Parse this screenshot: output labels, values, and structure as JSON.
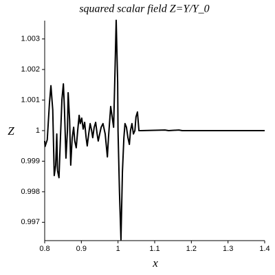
{
  "chart_data": {
    "type": "line",
    "title": "squared scalar field Z=Y/Y_0",
    "x_label": "x",
    "y_label": "Z",
    "x": [
      0.8,
      0.801,
      0.807,
      0.813,
      0.817,
      0.822,
      0.826,
      0.83,
      0.833,
      0.835,
      0.839,
      0.843,
      0.847,
      0.851,
      0.854,
      0.858,
      0.862,
      0.864,
      0.868,
      0.871,
      0.875,
      0.879,
      0.882,
      0.886,
      0.89,
      0.894,
      0.897,
      0.901,
      0.905,
      0.909,
      0.913,
      0.916,
      0.92,
      0.924,
      0.928,
      0.931,
      0.935,
      0.939,
      0.943,
      0.946,
      0.95,
      0.954,
      0.959,
      0.965,
      0.971,
      0.974,
      0.98,
      0.984,
      0.988,
      0.991,
      0.995,
      0.999,
      1.0,
      1.004,
      1.008,
      1.012,
      1.016,
      1.019,
      1.023,
      1.027,
      1.031,
      1.034,
      1.038,
      1.042,
      1.046,
      1.049,
      1.053,
      1.057,
      1.064,
      1.128,
      1.138,
      1.166,
      1.175,
      1.4
    ],
    "series": [
      {
        "name": "Z",
        "color": "#000000",
        "values": [
          0.99966,
          0.99948,
          0.9997,
          1.0009,
          1.00147,
          1.00068,
          0.99853,
          0.99887,
          0.99989,
          0.99869,
          0.99846,
          0.99977,
          1.00102,
          1.00153,
          1.00068,
          0.9991,
          1.0,
          1.00124,
          1.00034,
          0.99887,
          0.99977,
          1.00011,
          0.99966,
          0.99944,
          1.0,
          1.0005,
          1.00023,
          1.00041,
          1.00005,
          1.00027,
          0.99977,
          0.9995,
          0.99989,
          1.00023,
          1.0,
          0.99977,
          1.00011,
          1.00027,
          0.99989,
          0.99966,
          0.99989,
          1.00011,
          1.00023,
          0.99989,
          0.99914,
          0.99977,
          1.00079,
          1.00045,
          1.00011,
          1.00158,
          1.00361,
          1.00158,
          1.0,
          0.99797,
          0.99643,
          0.99865,
          0.99977,
          1.00023,
          1.00011,
          0.99977,
          0.99955,
          1.0,
          1.00023,
          0.99989,
          1.0,
          1.00045,
          1.00061,
          1.0,
          1.0,
          1.00002,
          1.0,
          1.00002,
          1.0,
          1.0
        ]
      }
    ],
    "xlim": [
      0.8,
      1.4
    ],
    "xticks": [
      0.8,
      0.9,
      1,
      1.1,
      1.2,
      1.3,
      1.4
    ],
    "ylim": [
      0.9964,
      1.0036
    ],
    "yticks": [
      0.997,
      0.998,
      0.999,
      1,
      1.001,
      1.002,
      1.003
    ],
    "grid": false
  }
}
